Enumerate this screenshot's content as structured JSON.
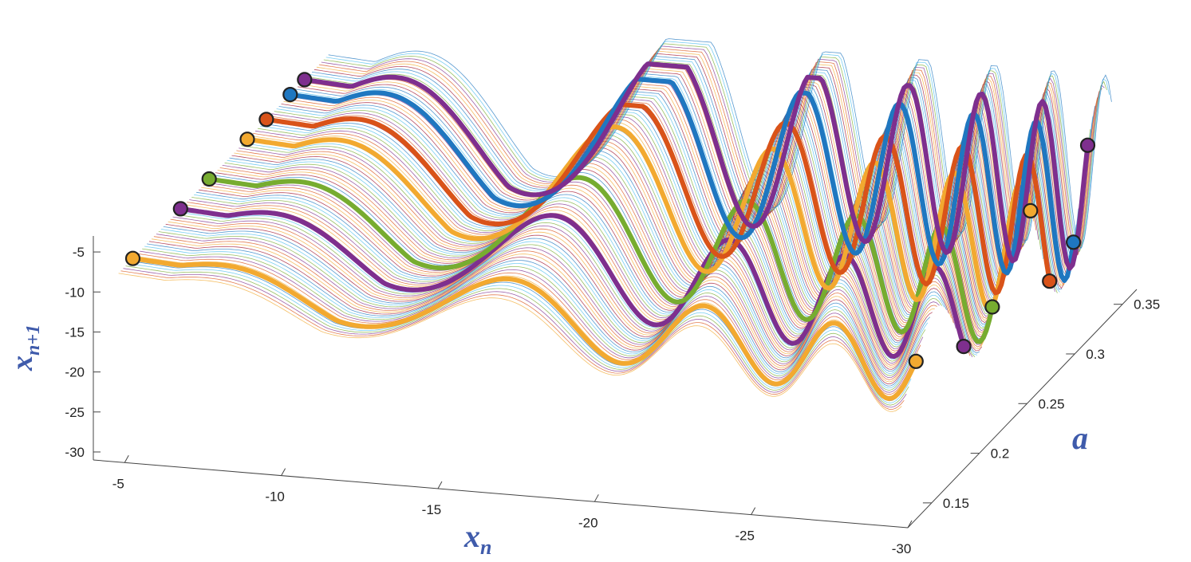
{
  "chart_data": {
    "type": "line",
    "subtype": "3d-waterfall",
    "title": "",
    "xlabel": {
      "base": "x",
      "sub": "n"
    },
    "ylabel": {
      "base": "x",
      "sub": "n+1"
    },
    "zlabel": "a",
    "x_ticks": [
      "-5",
      "-10",
      "-15",
      "-20",
      "-25",
      "-30"
    ],
    "y_ticks": [
      "-5",
      "-10",
      "-15",
      "-20",
      "-25",
      "-30"
    ],
    "a_ticks": [
      "0.15",
      "0.2",
      "0.25",
      "0.3",
      "0.35"
    ],
    "xlim": [
      -4,
      -30
    ],
    "ylim": [
      -31,
      -3
    ],
    "alim": [
      0.125,
      0.365
    ],
    "grid": false,
    "thin_curve_count": 90,
    "highlight_series": [
      {
        "a": 0.15,
        "color": "#f2a930",
        "endpoint_colors": [
          "#f2a930",
          "#f2a930"
        ]
      },
      {
        "a": 0.2,
        "color": "#7e2f8e",
        "endpoint_colors": [
          "#7e2f8e",
          "#7e2f8e"
        ]
      },
      {
        "a": 0.23,
        "color": "#77ac30",
        "endpoint_colors": [
          "#77ac30",
          "#77ac30"
        ]
      },
      {
        "a": 0.27,
        "color": "#f2a930",
        "endpoint_colors": [
          "#f2a930",
          "#f2a930"
        ]
      },
      {
        "a": 0.29,
        "color": "#d95319",
        "endpoint_colors": [
          "#d95319",
          "#d95319"
        ]
      },
      {
        "a": 0.315,
        "color": "#1f77c0",
        "endpoint_colors": [
          "#1f77c0",
          "#1f77c0"
        ]
      },
      {
        "a": 0.33,
        "color": "#7e2f8e",
        "endpoint_colors": [
          "#7e2f8e",
          "#7e2f8e"
        ]
      }
    ],
    "thin_palette": [
      "#f2a930",
      "#d95319",
      "#7e2f8e",
      "#77ac30",
      "#4dbeee",
      "#1f77c0",
      "#a2142f"
    ]
  }
}
